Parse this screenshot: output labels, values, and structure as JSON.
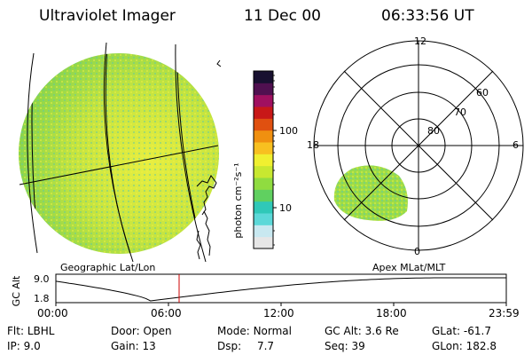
{
  "header": {
    "instrument": "Ultraviolet Imager",
    "date": "11 Dec 00",
    "time": "06:33:56 UT"
  },
  "geo_panel": {
    "label": "Geographic Lat/Lon"
  },
  "colorbar": {
    "label": "photon cm⁻²s⁻¹",
    "tick_high": "100",
    "tick_low": "10",
    "colors": [
      "#e6e6e6",
      "#c8e8f0",
      "#5cd8d8",
      "#30c8b8",
      "#60d060",
      "#90dc40",
      "#c8e830",
      "#f0f030",
      "#f8c020",
      "#f09010",
      "#e05010",
      "#c81818",
      "#a01060",
      "#501050",
      "#181030"
    ]
  },
  "polar_panel": {
    "label": "Apex MLat/MLT",
    "mlt_labels": {
      "top": "12",
      "left": "18",
      "right": "6",
      "bottom": "0"
    },
    "lat_labels": [
      "60",
      "70",
      "80"
    ]
  },
  "timeline": {
    "ylabel": "GC Alt",
    "y_ticks": [
      "9.0",
      "1.8"
    ],
    "x_ticks": [
      "00:00",
      "06:00",
      "12:00",
      "18:00",
      "23:59"
    ],
    "current_time": "06:33:56",
    "current_fraction": 0.2736,
    "alt_max_re": 9.0,
    "alt_min_re": 1.8
  },
  "info": {
    "flt_label": "Flt:",
    "flt_value": "LBHL",
    "ip_label": "IP:",
    "ip_value": "9.0",
    "door_label": "Door:",
    "door_value": "Open",
    "gain_label": "Gain:",
    "gain_value": "13",
    "mode_label": "Mode:",
    "mode_value": "Normal",
    "dsp_label": "Dsp:",
    "dsp_value": "7.7",
    "gcalt_label": "GC Alt:",
    "gcalt_value": "3.6 Re",
    "seq_label": "Seq:",
    "seq_value": "39",
    "glat_label": "GLat:",
    "glat_value": "-61.7",
    "glon_label": "GLon:",
    "glon_value": "182.8"
  }
}
